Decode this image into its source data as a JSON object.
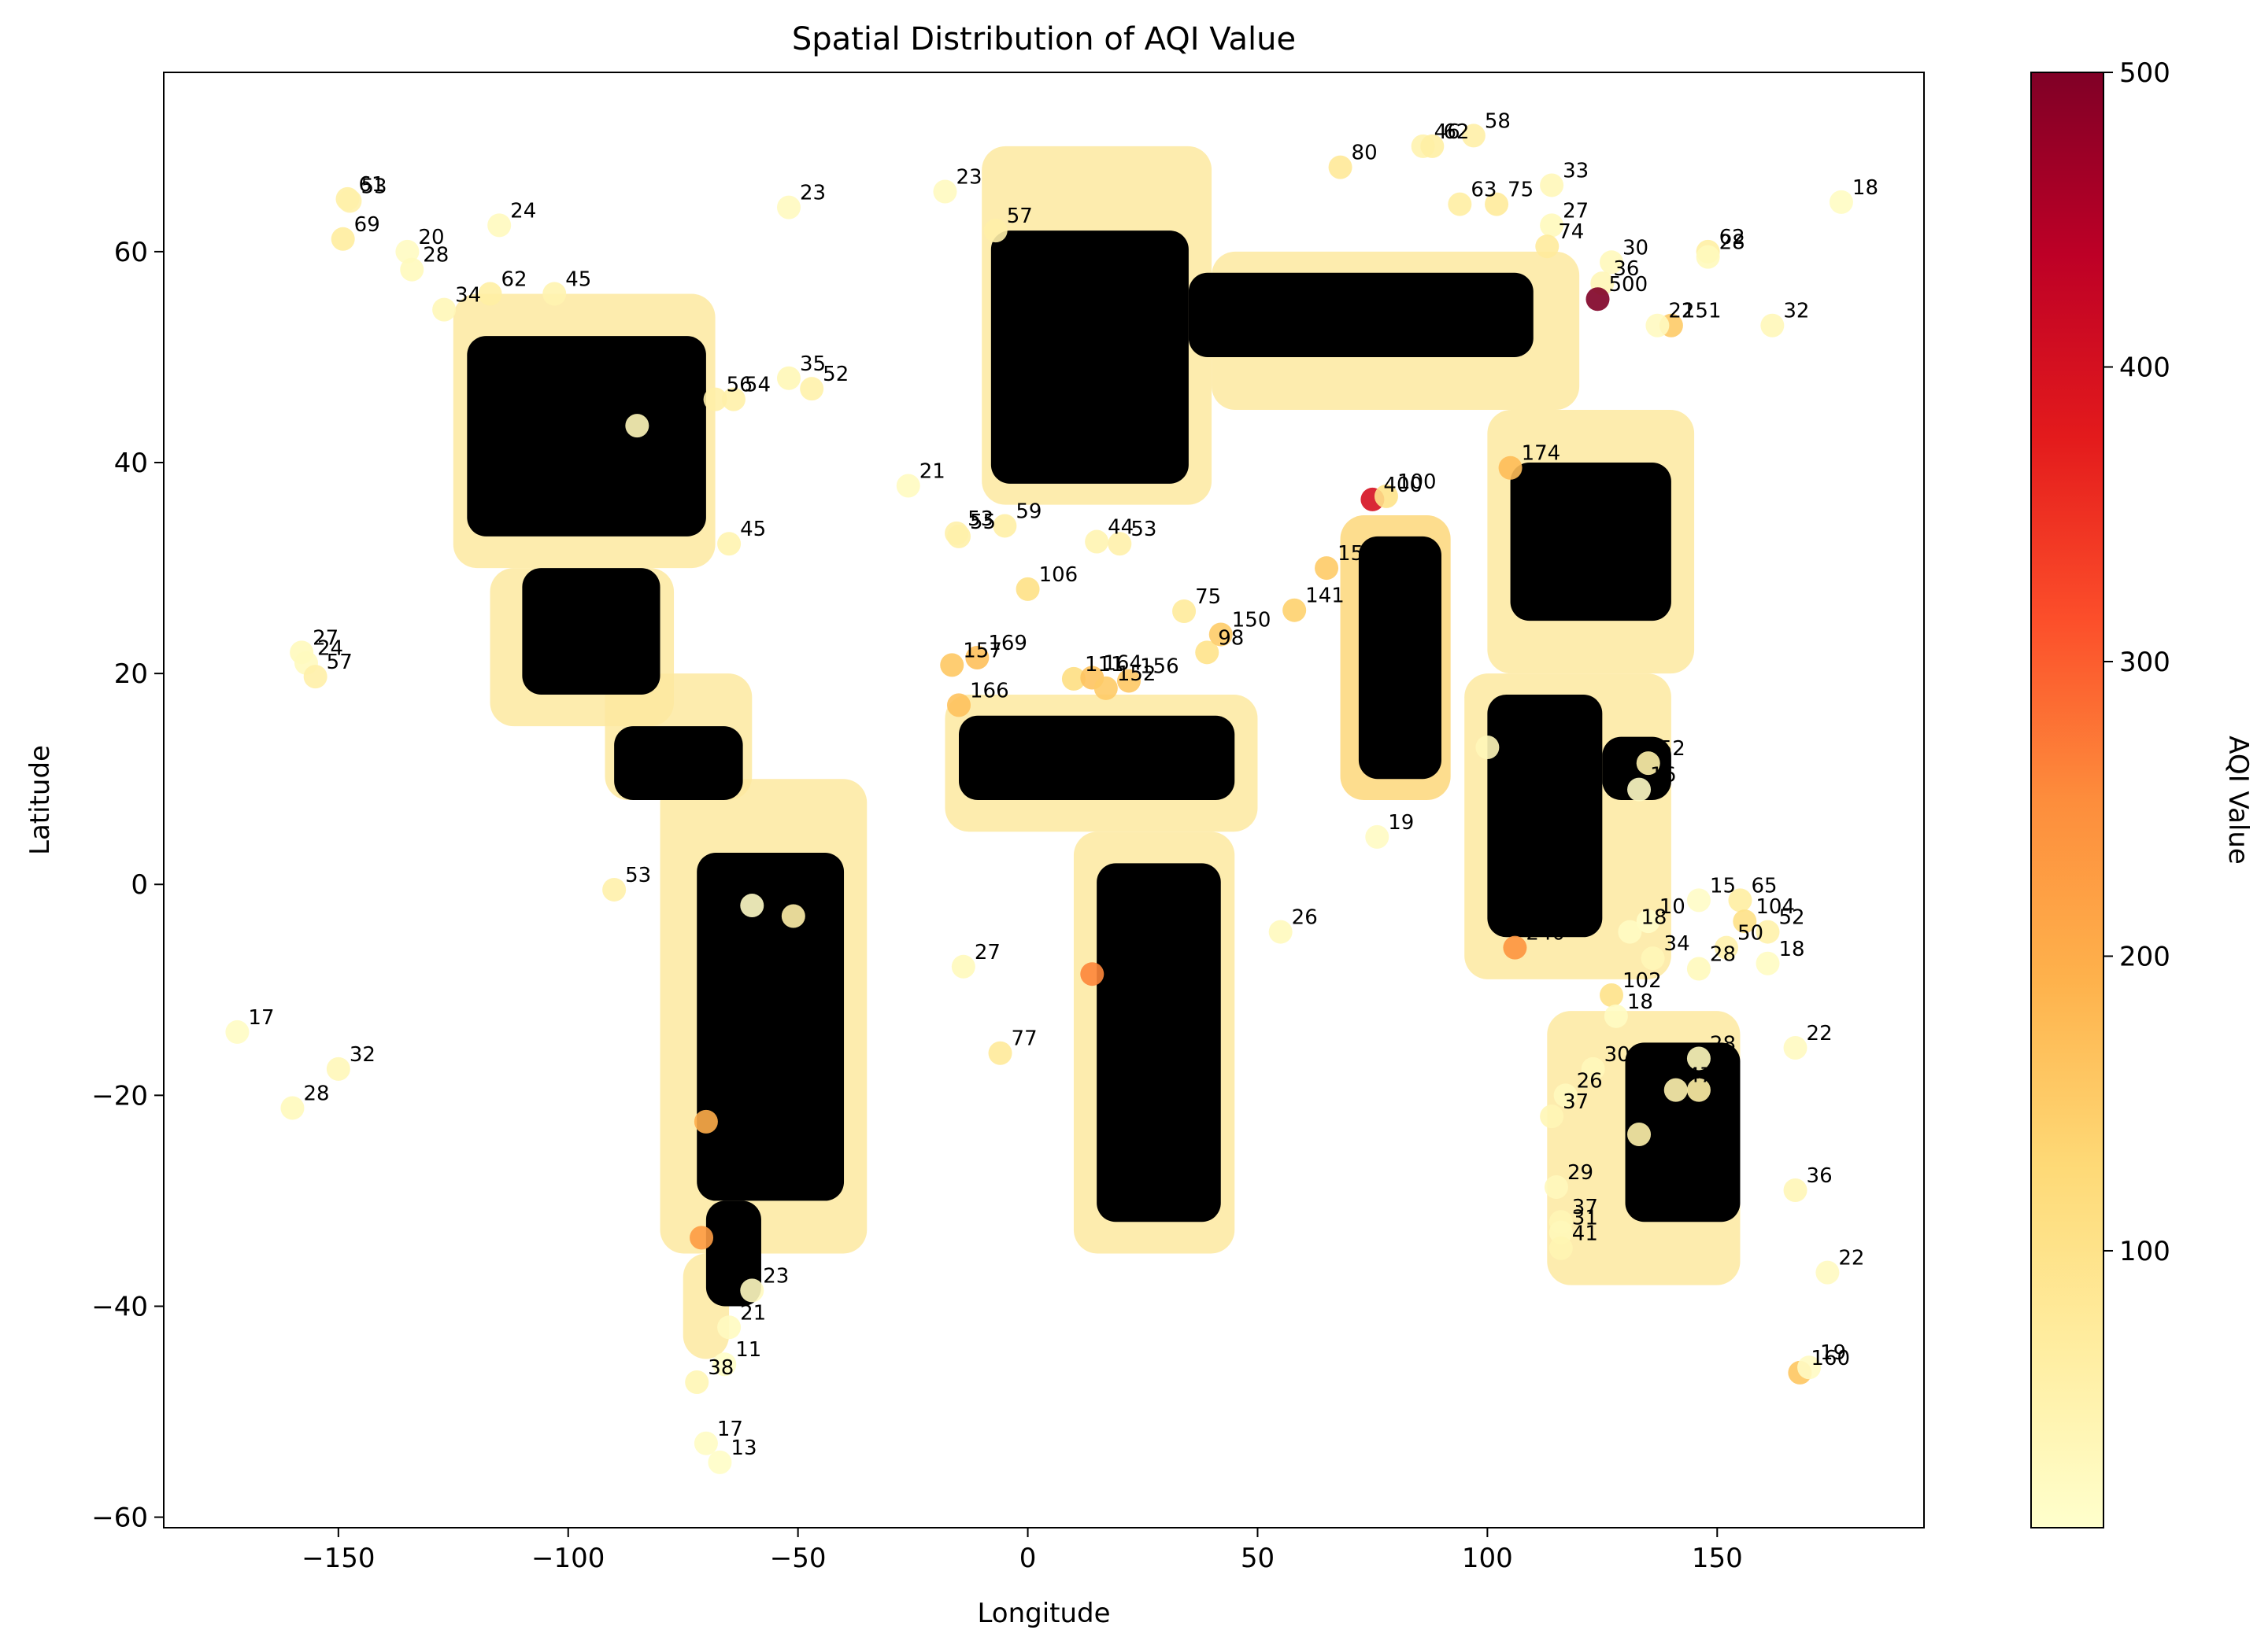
{
  "chart_data": {
    "type": "scatter",
    "title": "Spatial Distribution of AQI Value",
    "xlabel": "Longitude",
    "ylabel": "Latitude",
    "xlim": [
      -188,
      195
    ],
    "ylim": [
      -61,
      77
    ],
    "x_ticks": [
      -150,
      -100,
      -50,
      0,
      50,
      100,
      150
    ],
    "x_tick_labels": [
      "−150",
      "−100",
      "−50",
      "0",
      "50",
      "100",
      "150"
    ],
    "y_ticks": [
      -60,
      -40,
      -20,
      0,
      20,
      40,
      60
    ],
    "y_tick_labels": [
      "−60",
      "−40",
      "−20",
      "0",
      "20",
      "40",
      "60"
    ],
    "grid": false,
    "colormap": "YlOrRd",
    "colormap_stops": [
      "#ffffcc",
      "#ffeda0",
      "#fed976",
      "#feb24c",
      "#fd8d3c",
      "#fc4e2a",
      "#e31a1c",
      "#bd0026",
      "#800026"
    ],
    "colorbar": {
      "label": "AQI Value",
      "min": 6,
      "max": 500,
      "ticks": [
        100,
        200,
        300,
        400,
        500
      ],
      "tick_labels": [
        "100",
        "200",
        "300",
        "400",
        "500"
      ]
    },
    "points": [
      {
        "x": -148,
        "y": 65,
        "v": 61,
        "label": "61"
      },
      {
        "x": -147.5,
        "y": 64.8,
        "v": 53,
        "label": "53"
      },
      {
        "x": -149,
        "y": 61.2,
        "v": 69,
        "label": "69"
      },
      {
        "x": -135,
        "y": 60,
        "v": 20,
        "label": "20"
      },
      {
        "x": -134,
        "y": 58.3,
        "v": 28,
        "label": "28"
      },
      {
        "x": -115,
        "y": 62.5,
        "v": 24,
        "label": "24"
      },
      {
        "x": -52,
        "y": 64.2,
        "v": 23,
        "label": "23"
      },
      {
        "x": -18,
        "y": 65.7,
        "v": 23,
        "label": "23"
      },
      {
        "x": -7,
        "y": 62,
        "v": 57,
        "label": "57"
      },
      {
        "x": 177,
        "y": 64.7,
        "v": 18,
        "label": "18"
      },
      {
        "x": 114,
        "y": 66.3,
        "v": 33,
        "label": "33"
      },
      {
        "x": 86,
        "y": 70,
        "v": 46,
        "label": "46"
      },
      {
        "x": 88,
        "y": 70,
        "v": 62,
        "label": "62"
      },
      {
        "x": 97,
        "y": 71,
        "v": 58,
        "label": "58"
      },
      {
        "x": 68,
        "y": 68,
        "v": 80,
        "label": "80"
      },
      {
        "x": 94,
        "y": 64.5,
        "v": 63,
        "label": "63"
      },
      {
        "x": 102,
        "y": 64.5,
        "v": 75,
        "label": "75"
      },
      {
        "x": 114,
        "y": 62.5,
        "v": 27,
        "label": "27"
      },
      {
        "x": 113,
        "y": 60.5,
        "v": 74,
        "label": "74"
      },
      {
        "x": 148,
        "y": 60,
        "v": 62,
        "label": "62"
      },
      {
        "x": 148,
        "y": 59.5,
        "v": 28,
        "label": "28"
      },
      {
        "x": 127,
        "y": 59,
        "v": 30,
        "label": "30"
      },
      {
        "x": 125,
        "y": 57,
        "v": 36,
        "label": "36"
      },
      {
        "x": 124,
        "y": 55.5,
        "v": 500,
        "label": "500"
      },
      {
        "x": 140,
        "y": 53,
        "v": 151,
        "label": "151"
      },
      {
        "x": 162,
        "y": 53,
        "v": 32,
        "label": "32"
      },
      {
        "x": 137,
        "y": 53,
        "v": 22,
        "label": "22"
      },
      {
        "x": -127,
        "y": 54.5,
        "v": 34,
        "label": "34"
      },
      {
        "x": -117,
        "y": 56,
        "v": 62,
        "label": "62"
      },
      {
        "x": -103,
        "y": 56,
        "v": 45,
        "label": "45"
      },
      {
        "x": -52,
        "y": 48,
        "v": 35,
        "label": "35"
      },
      {
        "x": -47,
        "y": 47,
        "v": 52,
        "label": "52"
      },
      {
        "x": -64,
        "y": 46,
        "v": 54,
        "label": "54"
      },
      {
        "x": -68,
        "y": 46,
        "v": 56,
        "label": "56"
      },
      {
        "x": -85,
        "y": 43.5,
        "v": 33,
        "label": "33"
      },
      {
        "x": -65,
        "y": 32.3,
        "v": 45,
        "label": "45"
      },
      {
        "x": -158,
        "y": 22,
        "v": 27,
        "label": "27"
      },
      {
        "x": -157,
        "y": 21,
        "v": 24,
        "label": "24"
      },
      {
        "x": -155,
        "y": 19.7,
        "v": 57,
        "label": "57"
      },
      {
        "x": -172,
        "y": -14,
        "v": 17,
        "label": "17"
      },
      {
        "x": -150,
        "y": -17.5,
        "v": 32,
        "label": "32"
      },
      {
        "x": -160,
        "y": -21.2,
        "v": 28,
        "label": "28"
      },
      {
        "x": -90,
        "y": -0.5,
        "v": 53,
        "label": "53"
      },
      {
        "x": -60,
        "y": -2,
        "v": 15,
        "label": "15"
      },
      {
        "x": -51,
        "y": -3,
        "v": 57,
        "label": "57"
      },
      {
        "x": -26,
        "y": 37.8,
        "v": 21,
        "label": "21"
      },
      {
        "x": -15,
        "y": 33,
        "v": 55,
        "label": "55"
      },
      {
        "x": -15.5,
        "y": 33.3,
        "v": 53,
        "label": "53"
      },
      {
        "x": -5,
        "y": 34,
        "v": 59,
        "label": "59"
      },
      {
        "x": 0,
        "y": 28,
        "v": 106,
        "label": "106"
      },
      {
        "x": 15,
        "y": 32.5,
        "v": 44,
        "label": "44"
      },
      {
        "x": 20,
        "y": 32.3,
        "v": 53,
        "label": "53"
      },
      {
        "x": 34,
        "y": 25.9,
        "v": 75,
        "label": "75"
      },
      {
        "x": 39,
        "y": 22,
        "v": 98,
        "label": "98"
      },
      {
        "x": 42,
        "y": 23.7,
        "v": 150,
        "label": "150"
      },
      {
        "x": -16.5,
        "y": 20.8,
        "v": 157,
        "label": "157"
      },
      {
        "x": -11,
        "y": 21.5,
        "v": 169,
        "label": "169"
      },
      {
        "x": -15,
        "y": 17,
        "v": 166,
        "label": "166"
      },
      {
        "x": 10,
        "y": 19.5,
        "v": 111,
        "label": "111"
      },
      {
        "x": 22,
        "y": 19.3,
        "v": 156,
        "label": "156"
      },
      {
        "x": 14,
        "y": 19.6,
        "v": 164,
        "label": "164"
      },
      {
        "x": 17,
        "y": 18.6,
        "v": 152,
        "label": "152"
      },
      {
        "x": 14,
        "y": -8.5,
        "v": 260,
        "label": "260"
      },
      {
        "x": -71,
        "y": -33.5,
        "v": 230,
        "label": "230"
      },
      {
        "x": -70,
        "y": -22.5,
        "v": 200,
        "label": "200"
      },
      {
        "x": 55,
        "y": -4.5,
        "v": 26,
        "label": "26"
      },
      {
        "x": -14,
        "y": -7.8,
        "v": 27,
        "label": "27"
      },
      {
        "x": -6,
        "y": -16,
        "v": 77,
        "label": "77"
      },
      {
        "x": 105,
        "y": 39.5,
        "v": 174,
        "label": "174"
      },
      {
        "x": 75,
        "y": 36.5,
        "v": 400,
        "label": "400"
      },
      {
        "x": 65,
        "y": 30,
        "v": 152,
        "label": "152"
      },
      {
        "x": 58,
        "y": 26,
        "v": 141,
        "label": "141"
      },
      {
        "x": 78,
        "y": 36.8,
        "v": 100,
        "label": "100"
      },
      {
        "x": 76,
        "y": 4.5,
        "v": 19,
        "label": "19"
      },
      {
        "x": 100,
        "y": 13,
        "v": 32,
        "label": "32"
      },
      {
        "x": 135,
        "y": 11.5,
        "v": 52,
        "label": "52"
      },
      {
        "x": 133,
        "y": 9,
        "v": 16,
        "label": "16"
      },
      {
        "x": 106,
        "y": -6,
        "v": 240,
        "label": "240"
      },
      {
        "x": 135,
        "y": -3.5,
        "v": 10,
        "label": "10"
      },
      {
        "x": 146,
        "y": -1.5,
        "v": 15,
        "label": "15"
      },
      {
        "x": 155,
        "y": -1.5,
        "v": 65,
        "label": "65"
      },
      {
        "x": 156,
        "y": -3.5,
        "v": 104,
        "label": "104"
      },
      {
        "x": 161,
        "y": -4.5,
        "v": 52,
        "label": "52"
      },
      {
        "x": 152,
        "y": -6,
        "v": 50,
        "label": "50"
      },
      {
        "x": 131,
        "y": -4.5,
        "v": 18,
        "label": "18"
      },
      {
        "x": 136,
        "y": -7,
        "v": 34,
        "label": "34"
      },
      {
        "x": 146,
        "y": -8,
        "v": 28,
        "label": "28"
      },
      {
        "x": 161,
        "y": -7.5,
        "v": 18,
        "label": "18"
      },
      {
        "x": 127,
        "y": -10.5,
        "v": 102,
        "label": "102"
      },
      {
        "x": 128,
        "y": -12.5,
        "v": 18,
        "label": "18"
      },
      {
        "x": 167,
        "y": -15.5,
        "v": 22,
        "label": "22"
      },
      {
        "x": 123,
        "y": -17.5,
        "v": 30,
        "label": "30"
      },
      {
        "x": 117,
        "y": -20,
        "v": 26,
        "label": "26"
      },
      {
        "x": 114,
        "y": -22,
        "v": 37,
        "label": "37"
      },
      {
        "x": 146,
        "y": -16.5,
        "v": 28,
        "label": "28"
      },
      {
        "x": 141,
        "y": -19.5,
        "v": 47,
        "label": "47"
      },
      {
        "x": 146,
        "y": -19.5,
        "v": 60,
        "label": "60"
      },
      {
        "x": 133,
        "y": -23.7,
        "v": 52,
        "label": "52"
      },
      {
        "x": 115,
        "y": -28.7,
        "v": 29,
        "label": "29"
      },
      {
        "x": 116,
        "y": -32,
        "v": 37,
        "label": "37"
      },
      {
        "x": 116,
        "y": -33,
        "v": 31,
        "label": "31"
      },
      {
        "x": 116,
        "y": -34.5,
        "v": 41,
        "label": "41"
      },
      {
        "x": 167,
        "y": -29,
        "v": 36,
        "label": "36"
      },
      {
        "x": 174,
        "y": -36.8,
        "v": 22,
        "label": "22"
      },
      {
        "x": 168,
        "y": -46.3,
        "v": 160,
        "label": "160"
      },
      {
        "x": 170,
        "y": -45.8,
        "v": 19,
        "label": "19"
      },
      {
        "x": -72,
        "y": -47.2,
        "v": 38,
        "label": "38"
      },
      {
        "x": -66,
        "y": -45.5,
        "v": 11,
        "label": "11"
      },
      {
        "x": -70,
        "y": -53,
        "v": 17,
        "label": "17"
      },
      {
        "x": -67,
        "y": -54.8,
        "v": 13,
        "label": "13"
      },
      {
        "x": -65,
        "y": -42,
        "v": 21,
        "label": "21"
      },
      {
        "x": -60,
        "y": -38.5,
        "v": 23,
        "label": "23"
      }
    ]
  }
}
